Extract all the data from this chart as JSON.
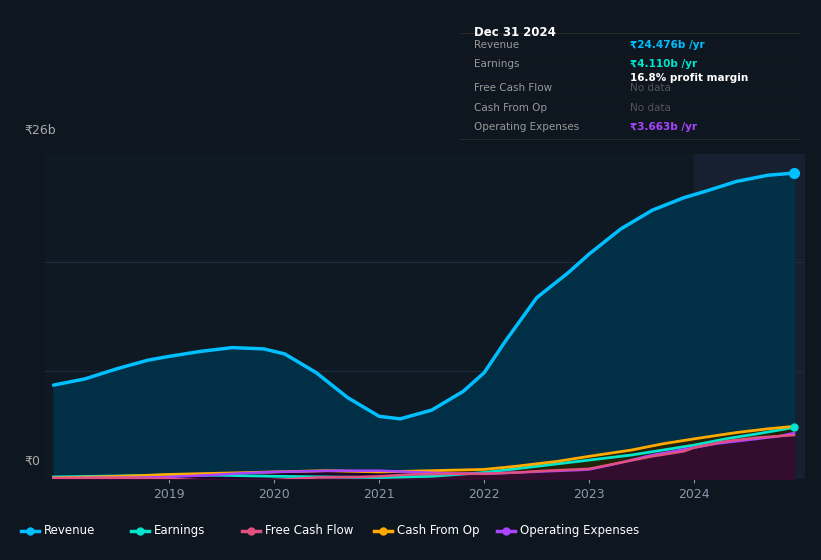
{
  "bg_color": "#0e1620",
  "chart_bg": "#0f1923",
  "highlight_bg": "#162030",
  "grid_color": "#1e2d3d",
  "ylim": [
    0,
    26
  ],
  "ylabel_top": "₹26b",
  "ylabel_bottom": "₹0",
  "x_ticks": [
    2019,
    2020,
    2021,
    2022,
    2023,
    2024
  ],
  "series": {
    "Revenue": {
      "color": "#00bfff",
      "fill_color": "#00324a",
      "linewidth": 2.5,
      "x": [
        2017.9,
        2018.2,
        2018.5,
        2018.8,
        2019.0,
        2019.3,
        2019.6,
        2019.9,
        2020.1,
        2020.4,
        2020.7,
        2021.0,
        2021.2,
        2021.5,
        2021.8,
        2022.0,
        2022.2,
        2022.5,
        2022.8,
        2023.0,
        2023.3,
        2023.6,
        2023.9,
        2024.1,
        2024.4,
        2024.7,
        2024.95
      ],
      "y": [
        7.5,
        8.0,
        8.8,
        9.5,
        9.8,
        10.2,
        10.5,
        10.4,
        10.0,
        8.5,
        6.5,
        5.0,
        4.8,
        5.5,
        7.0,
        8.5,
        11.0,
        14.5,
        16.5,
        18.0,
        20.0,
        21.5,
        22.5,
        23.0,
        23.8,
        24.3,
        24.476
      ]
    },
    "Earnings": {
      "color": "#00e5cc",
      "fill_color": "#003535",
      "linewidth": 2.0,
      "x": [
        2017.9,
        2018.3,
        2018.7,
        2019.0,
        2019.5,
        2020.0,
        2020.5,
        2021.0,
        2021.5,
        2022.0,
        2022.3,
        2022.6,
        2023.0,
        2023.4,
        2023.7,
        2024.0,
        2024.3,
        2024.6,
        2024.95
      ],
      "y": [
        0.15,
        0.2,
        0.25,
        0.3,
        0.28,
        0.2,
        0.15,
        0.1,
        0.2,
        0.5,
        0.8,
        1.1,
        1.5,
        1.9,
        2.3,
        2.7,
        3.2,
        3.6,
        4.11
      ]
    },
    "FreeCashFlow": {
      "color": "#e05080",
      "fill_color": "#3a1030",
      "linewidth": 1.8,
      "x": [
        2017.9,
        2018.3,
        2018.6,
        2019.0,
        2019.4,
        2019.7,
        2020.0,
        2020.4,
        2020.8,
        2021.0,
        2021.3,
        2021.7,
        2022.0,
        2022.3,
        2022.6,
        2023.0,
        2023.3,
        2023.6,
        2023.9,
        2024.0,
        2024.3,
        2024.6,
        2024.95
      ],
      "y": [
        0.05,
        0.05,
        0.05,
        0.0,
        -0.15,
        -0.2,
        -0.1,
        0.1,
        0.15,
        0.2,
        0.35,
        0.4,
        0.4,
        0.5,
        0.65,
        0.8,
        1.3,
        1.8,
        2.2,
        2.5,
        3.0,
        3.3,
        3.5
      ]
    },
    "CashFromOp": {
      "color": "#ffaa00",
      "fill_color": "#2a2000",
      "linewidth": 2.0,
      "x": [
        2017.9,
        2018.3,
        2018.7,
        2019.0,
        2019.5,
        2020.0,
        2020.5,
        2021.0,
        2021.5,
        2022.0,
        2022.3,
        2022.7,
        2023.0,
        2023.4,
        2023.7,
        2024.0,
        2024.4,
        2024.7,
        2024.95
      ],
      "y": [
        0.08,
        0.15,
        0.25,
        0.35,
        0.45,
        0.55,
        0.65,
        0.55,
        0.65,
        0.75,
        1.0,
        1.4,
        1.8,
        2.3,
        2.8,
        3.2,
        3.7,
        4.0,
        4.2
      ]
    },
    "OperatingExpenses": {
      "color": "#aa44ff",
      "fill_color": "#200035",
      "linewidth": 1.8,
      "x": [
        2017.9,
        2018.3,
        2018.7,
        2019.0,
        2019.4,
        2019.7,
        2020.0,
        2020.3,
        2020.6,
        2021.0,
        2021.3,
        2021.6,
        2022.0,
        2022.3,
        2022.6,
        2022.9,
        2023.0,
        2023.2,
        2023.4,
        2023.6,
        2023.8,
        2024.0,
        2024.2,
        2024.4,
        2024.6,
        2024.8,
        2024.95
      ],
      "y": [
        0.05,
        0.08,
        0.1,
        0.15,
        0.3,
        0.45,
        0.55,
        0.6,
        0.65,
        0.65,
        0.55,
        0.45,
        0.4,
        0.5,
        0.6,
        0.7,
        0.75,
        1.1,
        1.5,
        1.9,
        2.2,
        2.5,
        2.8,
        3.0,
        3.2,
        3.4,
        3.663
      ]
    }
  },
  "tooltip": {
    "date": "Dec 31 2024",
    "revenue_label": "Revenue",
    "revenue_val": "₹24.476b /yr",
    "earnings_label": "Earnings",
    "earnings_val": "₹4.110b /yr",
    "profit_margin": "16.8% profit margin",
    "fcf_label": "Free Cash Flow",
    "fcf_val": "No data",
    "cfo_label": "Cash From Op",
    "cfo_val": "No data",
    "oe_label": "Operating Expenses",
    "oe_val": "₹3.663b /yr"
  },
  "legend": [
    {
      "label": "Revenue",
      "color": "#00bfff"
    },
    {
      "label": "Earnings",
      "color": "#00e5cc"
    },
    {
      "label": "Free Cash Flow",
      "color": "#e05080"
    },
    {
      "label": "Cash From Op",
      "color": "#ffaa00"
    },
    {
      "label": "Operating Expenses",
      "color": "#aa44ff"
    }
  ],
  "highlight_start": 2024.0,
  "highlight_end": 2025.05,
  "xlim": [
    2017.82,
    2025.05
  ]
}
